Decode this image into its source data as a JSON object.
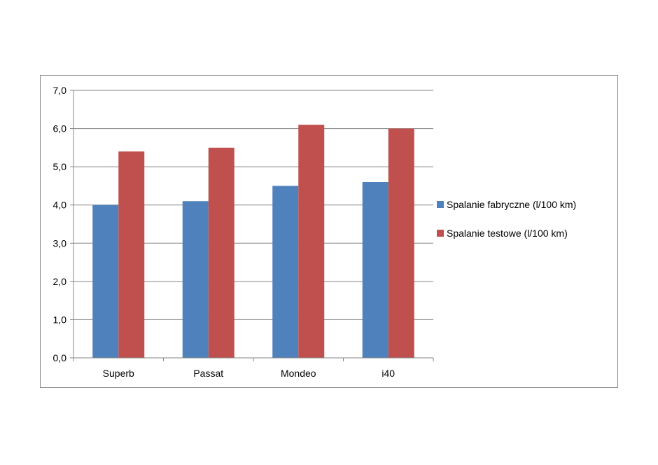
{
  "chart_data": {
    "type": "bar",
    "categories": [
      "Superb",
      "Passat",
      "Mondeo",
      "i40"
    ],
    "series": [
      {
        "name": "Spalanie fabryczne (l/100 km)",
        "values": [
          4.0,
          4.1,
          4.5,
          4.6
        ],
        "color": "#4F81BD"
      },
      {
        "name": "Spalanie testowe (l/100 km)",
        "values": [
          5.4,
          5.5,
          6.1,
          6.0
        ],
        "color": "#C0504D"
      }
    ],
    "ylim": [
      0,
      7
    ],
    "yticks": [
      "0,0",
      "1,0",
      "2,0",
      "3,0",
      "4,0",
      "5,0",
      "6,0",
      "7,0"
    ],
    "grid": true,
    "legend_position": "right",
    "title": "",
    "xlabel": "",
    "ylabel": ""
  }
}
